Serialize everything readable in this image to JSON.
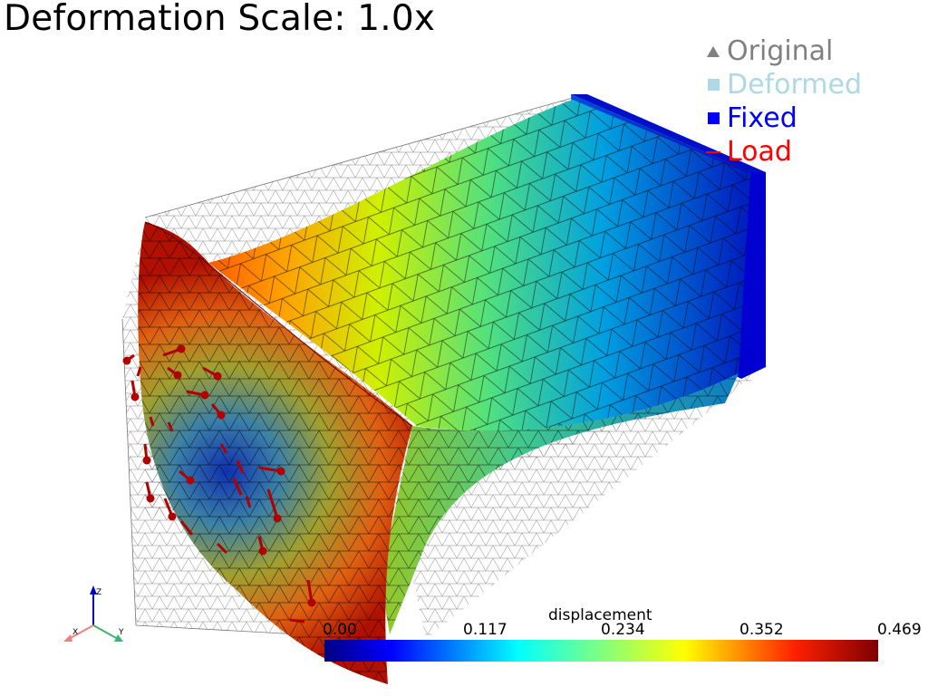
{
  "title": "Deformation Scale: 1.0x",
  "legend": [
    {
      "label": "Original",
      "symbol": "triangle",
      "color": "#808080"
    },
    {
      "label": "Deformed",
      "symbol": "square",
      "color": "#add8e6"
    },
    {
      "label": "Fixed",
      "symbol": "square",
      "color": "#0000ff"
    },
    {
      "label": "Load",
      "symbol": "line",
      "color": "#ff0000"
    }
  ],
  "scalar_bar": {
    "title": "displacement",
    "ticks": [
      "0.00",
      "0.117",
      "0.234",
      "0.352",
      "0.469"
    ],
    "range": [
      0.0,
      0.469
    ],
    "colormap": [
      "#00007f",
      "#0000ff",
      "#00ffff",
      "#80ff80",
      "#ffff00",
      "#ff8000",
      "#ff0000",
      "#7f0000"
    ]
  },
  "axes": {
    "x": "X",
    "y": "Y",
    "z": "Z",
    "x_color": "#f08080",
    "y_color": "#3cb371",
    "z_color": "#0000cd"
  },
  "colors": {
    "fixed": "#0000d0",
    "load": "#cc0000",
    "wire": "#555555",
    "mesh": "#000000"
  }
}
